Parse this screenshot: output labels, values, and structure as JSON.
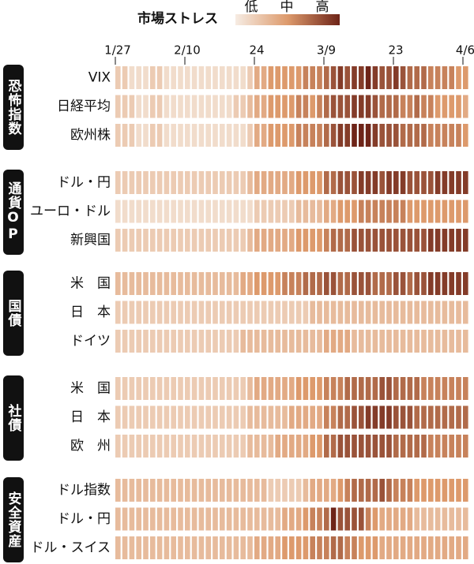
{
  "chart_data": {
    "type": "heatmap",
    "title": "市場ストレス",
    "scale_labels": [
      "低",
      "中",
      "高"
    ],
    "zlim": [
      0,
      10
    ],
    "colorscale": [
      "#f6ece3",
      "#dd9a6c",
      "#6e2418"
    ],
    "categories": [
      "1/27",
      null,
      null,
      null,
      null,
      null,
      null,
      null,
      null,
      null,
      "2/10",
      null,
      null,
      null,
      null,
      null,
      null,
      null,
      null,
      null,
      "24",
      null,
      null,
      null,
      null,
      null,
      null,
      null,
      null,
      null,
      "3/9",
      null,
      null,
      null,
      null,
      null,
      null,
      null,
      null,
      null,
      "23",
      null,
      null,
      null,
      null,
      null,
      null,
      null,
      null,
      null,
      "4/6"
    ],
    "groups": [
      {
        "name": "恐怖指数",
        "rows": [
          {
            "name": "VIX",
            "values": [
              2,
              2,
              1,
              1,
              1,
              2,
              2,
              1,
              1,
              1,
              1,
              1,
              1,
              1,
              1,
              1,
              1,
              1,
              1,
              2,
              4,
              4,
              5,
              5,
              5,
              5,
              5,
              6,
              6,
              6,
              7,
              8,
              9,
              8,
              9,
              9,
              10,
              9,
              8,
              8,
              9,
              8,
              7,
              7,
              7,
              6,
              6,
              6,
              6,
              5,
              5
            ]
          },
          {
            "name": "日経平均",
            "values": [
              2,
              2,
              2,
              1,
              1,
              2,
              2,
              1,
              1,
              1,
              1,
              1,
              1,
              1,
              1,
              1,
              1,
              2,
              2,
              3,
              4,
              4,
              5,
              5,
              5,
              5,
              6,
              6,
              5,
              6,
              7,
              8,
              8,
              8,
              9,
              9,
              9,
              8,
              7,
              7,
              7,
              6,
              6,
              7,
              6,
              6,
              5,
              5,
              5,
              5,
              4
            ]
          },
          {
            "name": "欧州株",
            "values": [
              2,
              2,
              2,
              1,
              1,
              2,
              2,
              1,
              1,
              1,
              1,
              1,
              1,
              1,
              1,
              1,
              1,
              1,
              1,
              2,
              4,
              4,
              5,
              5,
              5,
              5,
              6,
              6,
              6,
              6,
              7,
              8,
              9,
              9,
              10,
              10,
              10,
              9,
              8,
              8,
              8,
              7,
              7,
              7,
              7,
              6,
              6,
              6,
              6,
              6,
              5
            ]
          }
        ]
      },
      {
        "name": "通貨OP",
        "rows": [
          {
            "name": "ドル・円",
            "values": [
              2,
              2,
              2,
              2,
              2,
              2,
              2,
              2,
              2,
              2,
              2,
              2,
              2,
              2,
              2,
              2,
              2,
              2,
              2,
              3,
              4,
              4,
              4,
              4,
              4,
              4,
              5,
              5,
              5,
              5,
              7,
              7,
              8,
              8,
              8,
              9,
              9,
              9,
              8,
              9,
              9,
              9,
              8,
              8,
              8,
              8,
              9,
              9,
              9,
              9,
              9
            ]
          },
          {
            "name": "ユーロ・ドル",
            "values": [
              1,
              1,
              1,
              1,
              1,
              1,
              1,
              1,
              1,
              1,
              1,
              1,
              1,
              1,
              1,
              1,
              1,
              1,
              1,
              1,
              2,
              2,
              2,
              2,
              2,
              2,
              3,
              3,
              3,
              3,
              4,
              4,
              5,
              5,
              5,
              6,
              6,
              6,
              6,
              6,
              6,
              6,
              5,
              5,
              5,
              5,
              5,
              5,
              5,
              5,
              5
            ]
          },
          {
            "name": "新興国",
            "values": [
              2,
              2,
              2,
              2,
              2,
              2,
              2,
              2,
              2,
              2,
              2,
              2,
              2,
              2,
              2,
              2,
              2,
              2,
              2,
              3,
              4,
              4,
              4,
              4,
              4,
              4,
              5,
              5,
              5,
              5,
              6,
              7,
              7,
              7,
              8,
              8,
              8,
              8,
              8,
              8,
              8,
              8,
              8,
              8,
              8,
              9,
              9,
              9,
              9,
              9,
              9
            ]
          }
        ]
      },
      {
        "name": "国債",
        "rows": [
          {
            "name": "米　国",
            "values": [
              3,
              3,
              3,
              3,
              3,
              3,
              3,
              3,
              3,
              3,
              3,
              3,
              3,
              3,
              3,
              3,
              3,
              3,
              4,
              4,
              5,
              5,
              5,
              5,
              6,
              6,
              6,
              7,
              7,
              7,
              8,
              8,
              7,
              7,
              8,
              8,
              8,
              7,
              7,
              7,
              8,
              8,
              7,
              8,
              8,
              9,
              9,
              9,
              9,
              9,
              9
            ]
          },
          {
            "name": "日　本",
            "values": [
              2,
              2,
              2,
              2,
              2,
              2,
              2,
              2,
              2,
              2,
              2,
              2,
              2,
              2,
              2,
              2,
              2,
              2,
              2,
              2,
              2,
              2,
              2,
              2,
              2,
              2,
              2,
              2,
              3,
              3,
              3,
              3,
              3,
              3,
              3,
              3,
              3,
              3,
              3,
              3,
              3,
              3,
              3,
              3,
              3,
              3,
              3,
              3,
              3,
              3,
              3
            ]
          },
          {
            "name": "ドイツ",
            "values": [
              2,
              2,
              2,
              2,
              2,
              2,
              2,
              2,
              2,
              2,
              2,
              2,
              2,
              2,
              2,
              2,
              2,
              2,
              3,
              3,
              3,
              3,
              3,
              3,
              3,
              3,
              3,
              3,
              3,
              3,
              4,
              4,
              4,
              4,
              3,
              3,
              3,
              3,
              3,
              3,
              3,
              3,
              3,
              3,
              3,
              3,
              3,
              3,
              3,
              3,
              3
            ]
          }
        ]
      },
      {
        "name": "社債",
        "rows": [
          {
            "name": "米　国",
            "values": [
              2,
              2,
              2,
              2,
              2,
              2,
              2,
              2,
              2,
              2,
              2,
              2,
              2,
              2,
              2,
              2,
              2,
              2,
              2,
              3,
              4,
              4,
              4,
              4,
              4,
              4,
              5,
              5,
              5,
              5,
              6,
              6,
              6,
              7,
              7,
              7,
              7,
              7,
              8,
              8,
              7,
              7,
              7,
              7,
              6,
              6,
              6,
              6,
              6,
              6,
              6
            ]
          },
          {
            "name": "日　本",
            "values": [
              2,
              2,
              2,
              2,
              2,
              2,
              2,
              2,
              2,
              2,
              2,
              2,
              2,
              2,
              2,
              2,
              2,
              2,
              2,
              3,
              3,
              3,
              3,
              3,
              3,
              4,
              4,
              4,
              4,
              4,
              6,
              6,
              7,
              7,
              8,
              8,
              9,
              9,
              9,
              9,
              8,
              8,
              8,
              7,
              7,
              7,
              7,
              7,
              7,
              7,
              7
            ]
          },
          {
            "name": "欧　州",
            "values": [
              2,
              2,
              2,
              2,
              2,
              2,
              2,
              2,
              2,
              2,
              2,
              2,
              2,
              2,
              2,
              2,
              2,
              2,
              2,
              3,
              3,
              3,
              3,
              4,
              4,
              4,
              4,
              4,
              5,
              5,
              7,
              7,
              8,
              8,
              8,
              8,
              8,
              8,
              8,
              8,
              7,
              7,
              7,
              7,
              7,
              6,
              6,
              6,
              6,
              6,
              6
            ]
          }
        ]
      },
      {
        "name": "安全資産",
        "rows": [
          {
            "name": "ドル指数",
            "values": [
              3,
              3,
              3,
              3,
              3,
              3,
              3,
              3,
              3,
              3,
              3,
              3,
              3,
              3,
              3,
              3,
              3,
              3,
              3,
              3,
              3,
              3,
              2,
              2,
              2,
              2,
              2,
              3,
              4,
              4,
              4,
              4,
              5,
              6,
              7,
              7,
              7,
              7,
              8,
              7,
              6,
              6,
              6,
              5,
              5,
              5,
              5,
              5,
              5,
              5,
              5
            ]
          },
          {
            "name": "ドル・円",
            "values": [
              3,
              3,
              3,
              3,
              3,
              3,
              3,
              3,
              3,
              3,
              3,
              3,
              3,
              3,
              3,
              3,
              3,
              3,
              3,
              3,
              3,
              3,
              3,
              3,
              4,
              4,
              4,
              5,
              6,
              6,
              7,
              10,
              8,
              8,
              8,
              8,
              6,
              5,
              4,
              4,
              4,
              4,
              4,
              3,
              3,
              3,
              3,
              3,
              3,
              3,
              3
            ]
          },
          {
            "name": "ドル・スイス",
            "values": [
              3,
              3,
              3,
              3,
              3,
              3,
              3,
              3,
              3,
              3,
              3,
              3,
              3,
              3,
              3,
              3,
              3,
              3,
              3,
              3,
              4,
              4,
              4,
              4,
              5,
              5,
              5,
              5,
              6,
              6,
              6,
              7,
              7,
              6,
              6,
              5,
              5,
              5,
              4,
              4,
              4,
              4,
              4,
              4,
              4,
              4,
              4,
              4,
              4,
              4,
              4
            ]
          }
        ]
      }
    ]
  }
}
